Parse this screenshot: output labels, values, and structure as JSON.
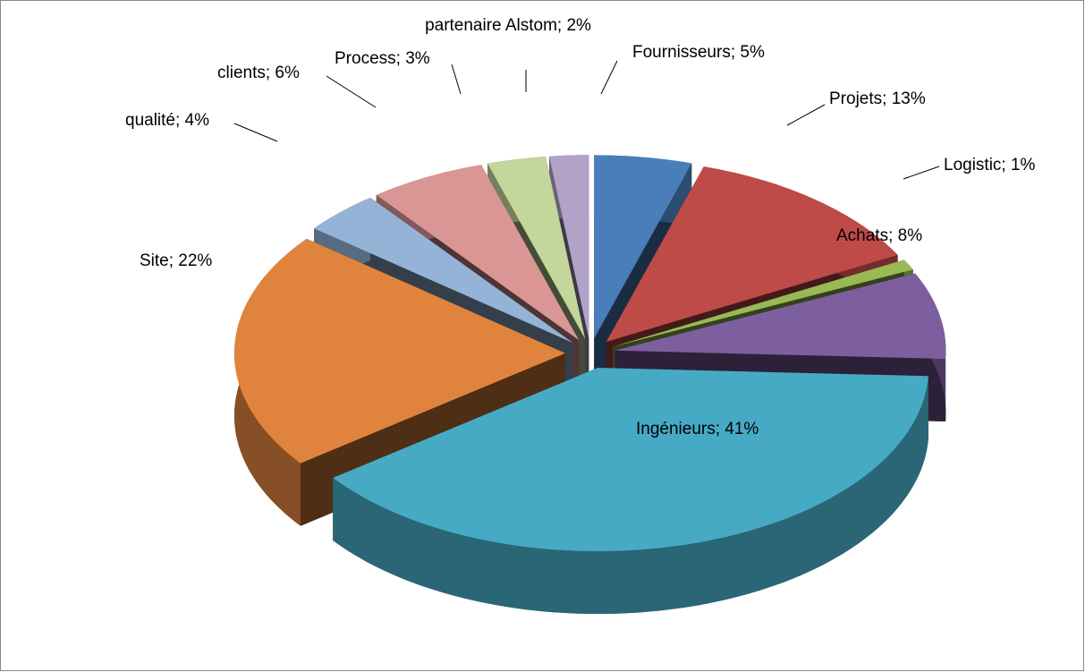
{
  "chart_data": {
    "type": "pie3d",
    "categories": [
      "Fournisseurs",
      "Projets",
      "Logistic",
      "Achats",
      "Ingénieurs",
      "Site",
      "qualité",
      "clients",
      "Process",
      "partenaire Alstom"
    ],
    "values": [
      5,
      13,
      1,
      8,
      41,
      22,
      4,
      6,
      3,
      2
    ],
    "value_labels": [
      "Fournisseurs; 5%",
      "Projets; 13%",
      "Logistic; 1%",
      "Achats; 8%",
      "Ingénieurs; 41%",
      "Site; 22%",
      "qualité; 4%",
      "clients; 6%",
      "Process; 3%",
      "partenaire Alstom; 2%"
    ],
    "colors": [
      "#4a7ebb",
      "#be4b48",
      "#98b954",
      "#7d5fa0",
      "#46aac5",
      "#e0843d",
      "#95b3d7",
      "#d99694",
      "#c3d69b",
      "#b3a2c7"
    ]
  }
}
